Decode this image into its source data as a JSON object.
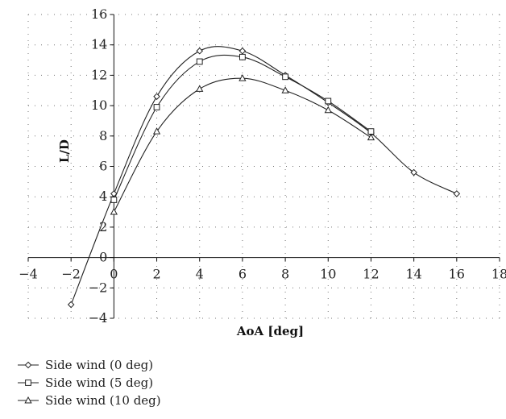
{
  "chart_data": {
    "type": "line",
    "xlabel": "AoA [deg]",
    "ylabel": "L/D",
    "xlim": [
      -4,
      18
    ],
    "ylim": [
      -4,
      16
    ],
    "xticks": [
      -4,
      -2,
      0,
      2,
      4,
      6,
      8,
      10,
      12,
      14,
      16,
      18
    ],
    "yticks": [
      -4,
      -2,
      0,
      2,
      4,
      6,
      8,
      10,
      12,
      14,
      16
    ],
    "grid": true,
    "legend_position": "bottom-left",
    "series": [
      {
        "name": "Side wind (0 deg)",
        "marker": "diamond",
        "x": [
          -2,
          0,
          2,
          4,
          6,
          8,
          10,
          12,
          14,
          16
        ],
        "y": [
          -3.1,
          4.2,
          10.6,
          13.6,
          13.6,
          12.0,
          10.2,
          8.2,
          5.6,
          4.2
        ]
      },
      {
        "name": "Side wind (5 deg)",
        "marker": "square",
        "x": [
          0,
          2,
          4,
          6,
          8,
          10,
          12
        ],
        "y": [
          3.8,
          9.9,
          12.9,
          13.2,
          11.9,
          10.3,
          8.3
        ]
      },
      {
        "name": "Side wind (10 deg)",
        "marker": "triangle",
        "x": [
          0,
          2,
          4,
          6,
          8,
          10,
          12
        ],
        "y": [
          3.0,
          8.3,
          11.1,
          11.8,
          11.0,
          9.7,
          7.9
        ]
      }
    ]
  }
}
